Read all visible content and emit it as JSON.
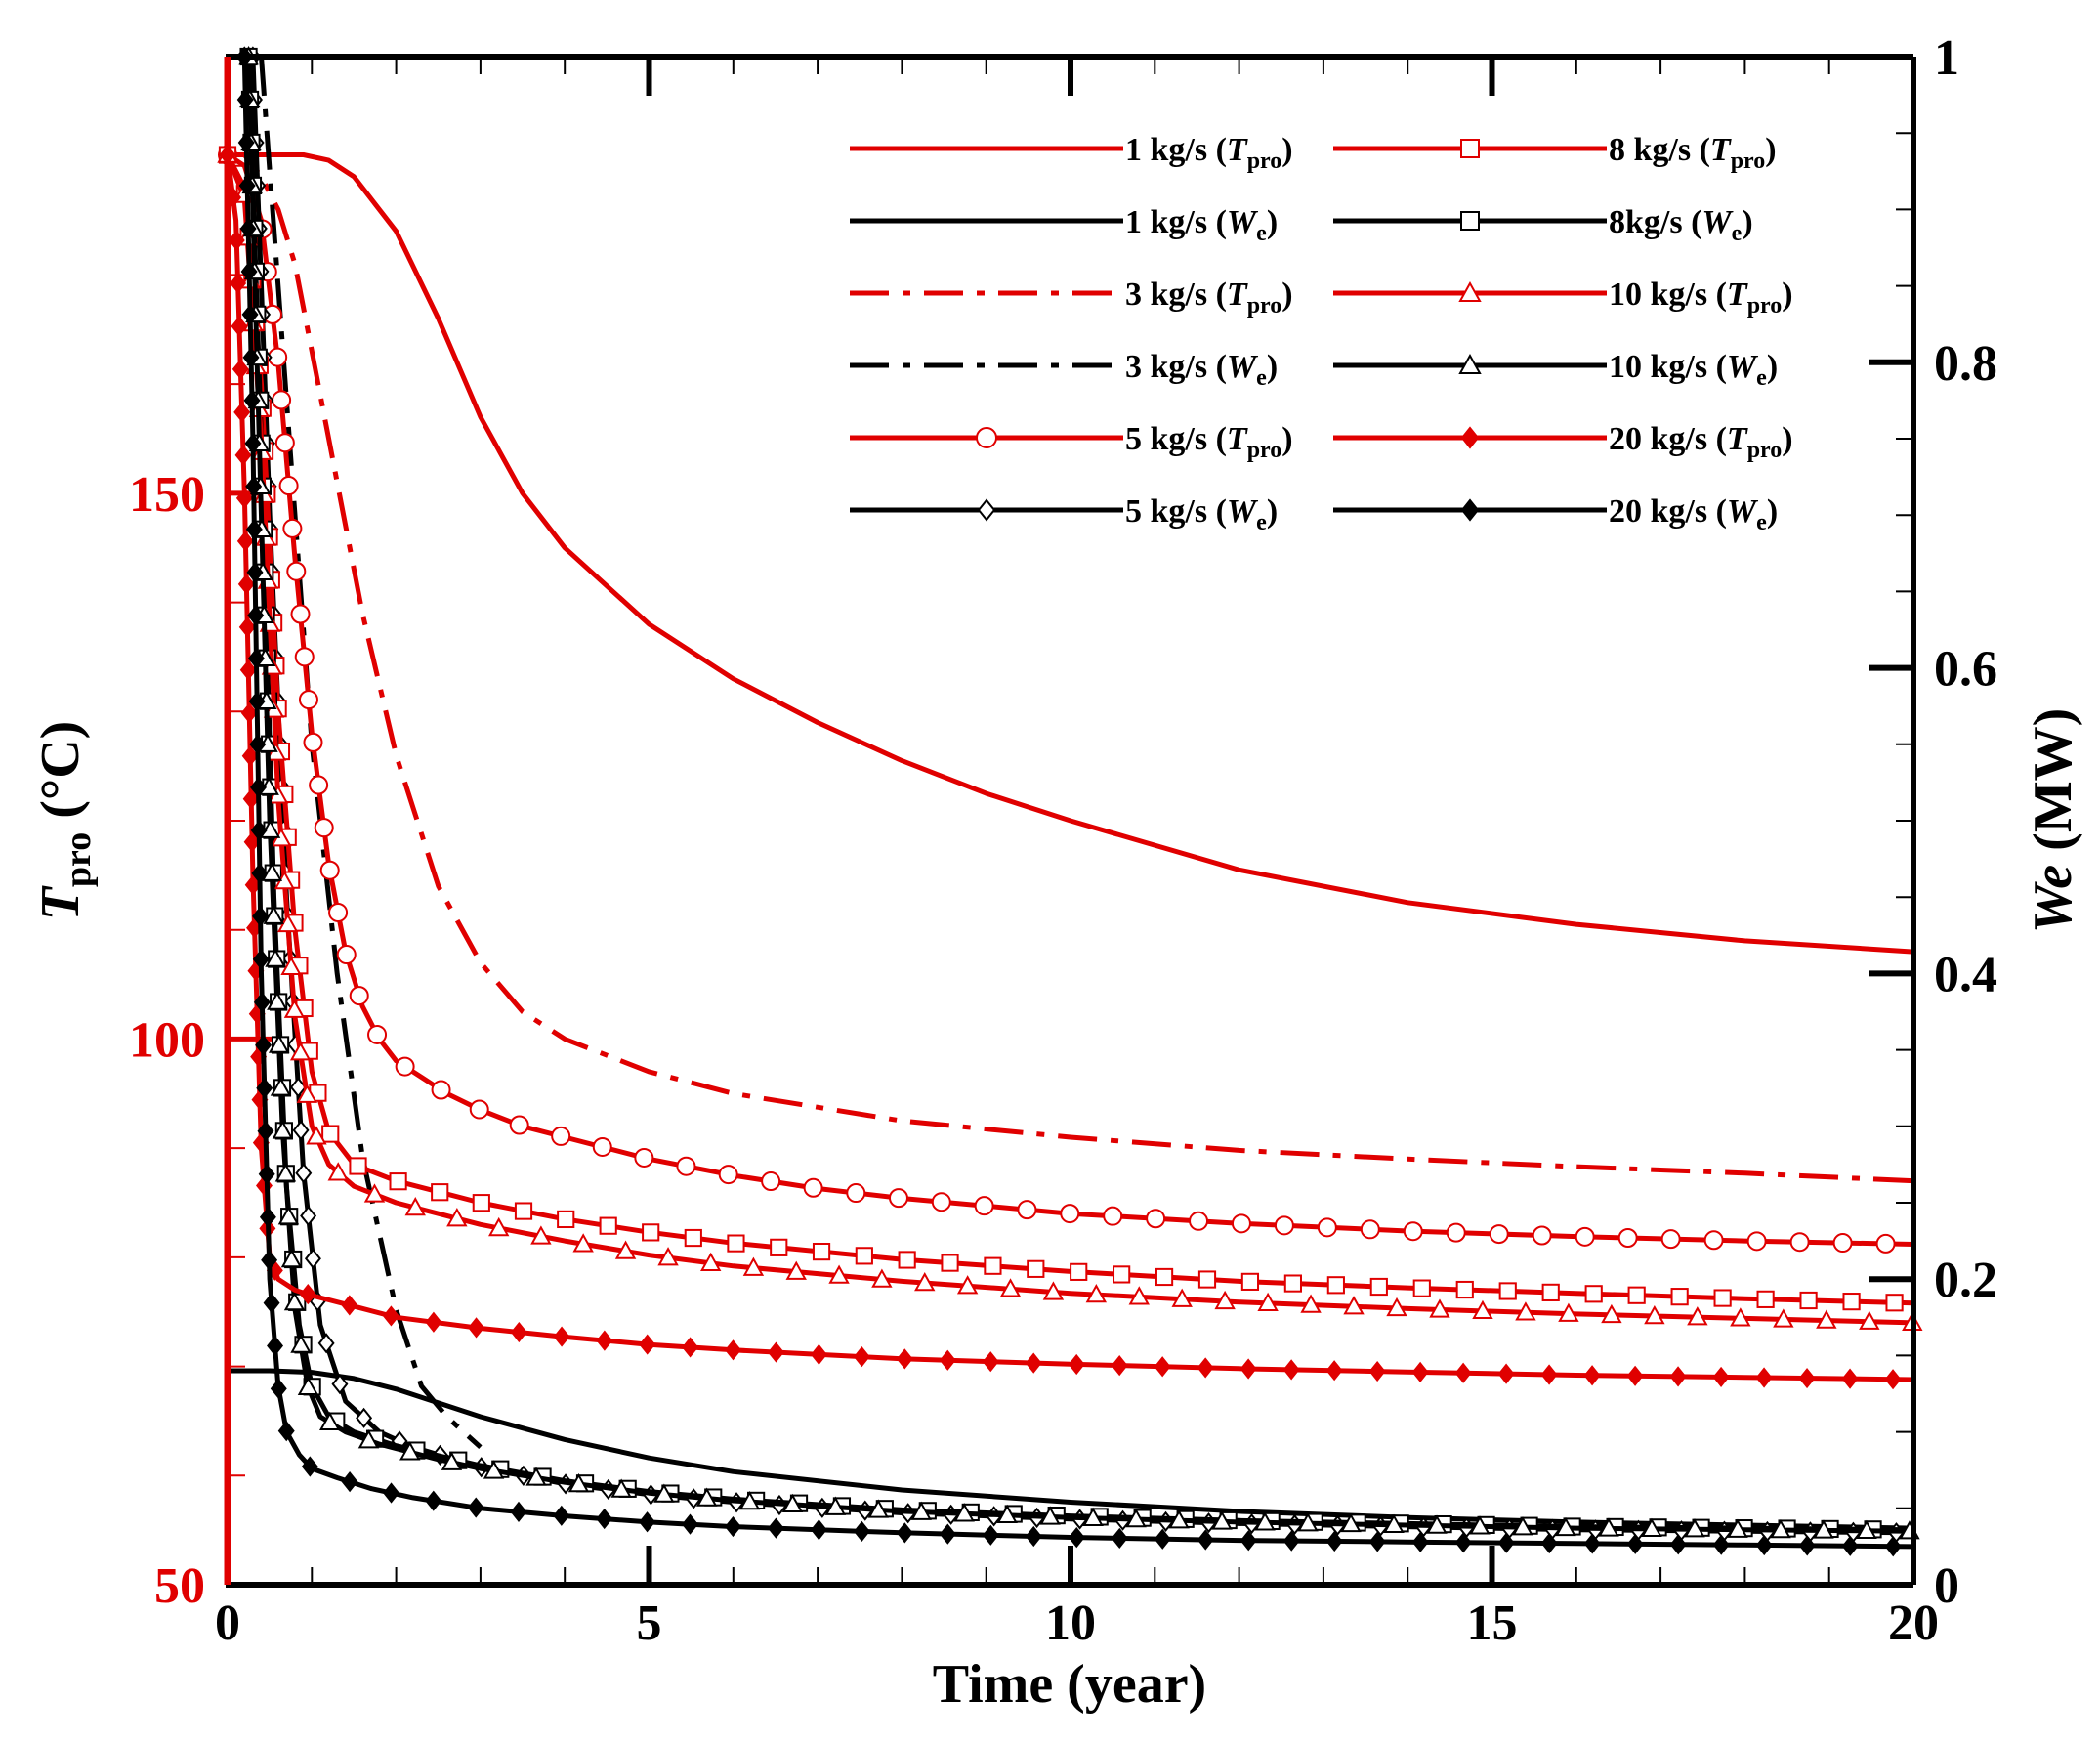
{
  "chart_data": {
    "type": "line",
    "xlabel": "Time (year)",
    "ylabel_left": {
      "symbol": "T",
      "sub": "pro",
      "unit": " (°C)"
    },
    "ylabel_right": {
      "symbol": "We",
      "unit": " (MW)"
    },
    "xlim": [
      0,
      20
    ],
    "ylim_left": [
      50,
      190
    ],
    "ylim_right": [
      0,
      1
    ],
    "x_ticks": [
      "0",
      "5",
      "10",
      "15",
      "20"
    ],
    "yl_ticks": [
      "50",
      "100",
      "150"
    ],
    "yr_ticks": [
      "0",
      "0.2",
      "0.4",
      "0.6",
      "0.8",
      "1"
    ],
    "colors": {
      "temp": "#e00000",
      "power": "#000000",
      "axis": "#000000",
      "left_axis": "#e00000"
    },
    "series": [
      {
        "label": "1 kg/s",
        "var": "T",
        "sub": "pro",
        "color": "#e00000",
        "dash": "solid",
        "marker": "none",
        "x": [
          0,
          0.3,
          0.6,
          0.9,
          1.2,
          1.5,
          2,
          2.5,
          3,
          3.5,
          4,
          5,
          6,
          7,
          8,
          9,
          10,
          12,
          14,
          16,
          18,
          20
        ],
        "y": [
          181,
          181,
          181,
          181,
          180.5,
          179,
          174,
          166,
          157,
          150,
          145,
          138,
          133,
          129,
          125.5,
          122.5,
          120,
          115.5,
          112.5,
          110.5,
          109,
          108
        ]
      },
      {
        "label": "1 kg/s",
        "var": "W",
        "sub": "e",
        "color": "#000000",
        "dash": "solid",
        "marker": "none",
        "x": [
          0,
          0.5,
          1,
          1.5,
          2,
          3,
          4,
          5,
          6,
          8,
          10,
          12,
          14,
          16,
          18,
          20
        ],
        "y": [
          0.14,
          0.14,
          0.139,
          0.135,
          0.128,
          0.11,
          0.095,
          0.083,
          0.074,
          0.062,
          0.054,
          0.048,
          0.044,
          0.041,
          0.039,
          0.037
        ]
      },
      {
        "label": "3 kg/s",
        "var": "T",
        "sub": "pro",
        "color": "#e00000",
        "dash": "dashdot",
        "marker": "none",
        "x": [
          0,
          0.2,
          0.4,
          0.6,
          0.8,
          1,
          1.3,
          1.6,
          2,
          2.5,
          3,
          3.5,
          4,
          5,
          6,
          8,
          10,
          12,
          14,
          16,
          18,
          20
        ],
        "y": [
          181,
          181,
          179,
          176,
          171,
          163,
          151,
          139,
          126,
          114,
          107,
          102.5,
          100,
          97,
          95,
          92.5,
          91,
          89.8,
          89,
          88.3,
          87.7,
          87
        ]
      },
      {
        "label": "3 kg/s",
        "var": "W",
        "sub": "e",
        "color": "#000000",
        "dash": "dashdot",
        "marker": "none",
        "x": [
          0.4,
          0.6,
          0.8,
          1,
          1.3,
          1.6,
          2,
          2.3,
          2.6,
          3
        ],
        "y": [
          1.0,
          0.85,
          0.7,
          0.55,
          0.4,
          0.28,
          0.18,
          0.13,
          0.11,
          0.09
        ]
      },
      {
        "label": "5 kg/s",
        "var": "T",
        "sub": "pro",
        "color": "#e00000",
        "dash": "solid",
        "marker": "circle",
        "x": [
          0,
          0.2,
          0.4,
          0.6,
          0.8,
          1,
          1.2,
          1.4,
          1.6,
          1.8,
          2,
          2.3,
          2.6,
          3,
          3.5,
          4,
          5,
          6,
          7,
          8,
          10,
          12,
          14,
          16,
          18,
          20
        ],
        "y": [
          181,
          180,
          175,
          162,
          144,
          128,
          116,
          108,
          103,
          100,
          98,
          96.5,
          95,
          93.5,
          92,
          91,
          89,
          87.5,
          86.3,
          85.4,
          84,
          83.1,
          82.4,
          81.9,
          81.5,
          81.2
        ]
      },
      {
        "label": "5 kg/s",
        "var": "W",
        "sub": "e",
        "color": "#000000",
        "dash": "solid",
        "marker": "diamond-open",
        "x": [
          0.3,
          0.5,
          0.7,
          0.9,
          1.1,
          1.4,
          1.8,
          2.2,
          3,
          4,
          5,
          6,
          8,
          10,
          12,
          14,
          16,
          18,
          20
        ],
        "y": [
          1.0,
          0.7,
          0.45,
          0.27,
          0.17,
          0.12,
          0.1,
          0.09,
          0.077,
          0.066,
          0.059,
          0.054,
          0.047,
          0.043,
          0.04,
          0.038,
          0.036,
          0.035,
          0.034
        ]
      },
      {
        "label": "8 kg/s",
        "var": "T",
        "sub": "pro",
        "color": "#e00000",
        "dash": "solid",
        "marker": "square",
        "x": [
          0,
          0.2,
          0.4,
          0.6,
          0.8,
          1,
          1.2,
          1.5,
          2,
          2.5,
          3,
          4,
          5,
          6,
          8,
          10,
          12,
          14,
          16,
          18,
          20
        ],
        "y": [
          181,
          178,
          160,
          130,
          110,
          97,
          91.5,
          88.5,
          87,
          86,
          85,
          83.5,
          82.3,
          81.3,
          79.8,
          78.7,
          77.8,
          77.2,
          76.7,
          76.2,
          75.8
        ]
      },
      {
        "label": "8kg/s",
        "var": "W",
        "sub": "e",
        "color": "#000000",
        "dash": "solid",
        "marker": "square",
        "x": [
          0.25,
          0.4,
          0.55,
          0.7,
          0.85,
          1,
          1.2,
          1.5,
          2,
          3,
          4,
          5,
          6,
          8,
          10,
          12,
          14,
          16,
          18,
          20
        ],
        "y": [
          1.0,
          0.75,
          0.45,
          0.26,
          0.17,
          0.13,
          0.11,
          0.1,
          0.091,
          0.078,
          0.068,
          0.061,
          0.056,
          0.049,
          0.045,
          0.042,
          0.04,
          0.038,
          0.037,
          0.036
        ]
      },
      {
        "label": "10 kg/s",
        "var": "T",
        "sub": "pro",
        "color": "#e00000",
        "dash": "solid",
        "marker": "triangle",
        "x": [
          0,
          0.2,
          0.4,
          0.6,
          0.8,
          1,
          1.2,
          1.5,
          2,
          2.5,
          3,
          4,
          5,
          6,
          8,
          10,
          12,
          14,
          16,
          18,
          20
        ],
        "y": [
          181,
          177,
          155,
          122,
          102,
          92,
          88.5,
          86.5,
          85,
          84,
          83,
          81.5,
          80.2,
          79.2,
          77.8,
          76.7,
          75.9,
          75.3,
          74.8,
          74.4,
          74
        ]
      },
      {
        "label": "10 kg/s",
        "var": "W",
        "sub": "e",
        "color": "#000000",
        "dash": "solid",
        "marker": "triangle-open",
        "x": [
          0.25,
          0.35,
          0.5,
          0.65,
          0.8,
          0.95,
          1.1,
          1.4,
          1.8,
          2.5,
          3,
          4,
          5,
          6,
          8,
          10,
          12,
          14,
          16,
          18,
          20
        ],
        "y": [
          1.0,
          0.8,
          0.5,
          0.3,
          0.18,
          0.13,
          0.11,
          0.1,
          0.092,
          0.082,
          0.076,
          0.067,
          0.06,
          0.055,
          0.048,
          0.044,
          0.041,
          0.039,
          0.037,
          0.036,
          0.035
        ]
      },
      {
        "label": "20 kg/s",
        "var": "T",
        "sub": "pro",
        "color": "#e00000",
        "dash": "solid",
        "marker": "diamond-filled",
        "x": [
          0,
          0.1,
          0.2,
          0.3,
          0.4,
          0.5,
          0.6,
          0.8,
          1,
          1.5,
          2,
          3,
          4,
          5,
          6,
          8,
          10,
          12,
          14,
          16,
          18,
          20
        ],
        "y": [
          181,
          175,
          150,
          115,
          90,
          80,
          78,
          77,
          76.5,
          75.5,
          74.5,
          73.5,
          72.7,
          72,
          71.5,
          70.7,
          70.2,
          69.8,
          69.5,
          69.2,
          69,
          68.8
        ]
      },
      {
        "label": "20 kg/s",
        "var": "W",
        "sub": "e",
        "color": "#000000",
        "dash": "solid",
        "marker": "diamond-filled",
        "x": [
          0.2,
          0.3,
          0.4,
          0.5,
          0.6,
          0.7,
          0.85,
          1,
          1.3,
          1.7,
          2.2,
          3,
          4,
          5,
          6,
          8,
          10,
          12,
          14,
          16,
          18,
          20
        ],
        "y": [
          1.0,
          0.75,
          0.4,
          0.2,
          0.13,
          0.1,
          0.085,
          0.076,
          0.07,
          0.063,
          0.057,
          0.05,
          0.045,
          0.041,
          0.038,
          0.034,
          0.031,
          0.029,
          0.028,
          0.027,
          0.026,
          0.025
        ]
      }
    ],
    "legend": {
      "placement": "top-right",
      "columns": 2,
      "order_left": [
        0,
        1,
        2,
        3,
        4,
        5
      ],
      "order_right": [
        6,
        7,
        8,
        9,
        10,
        11
      ]
    }
  }
}
